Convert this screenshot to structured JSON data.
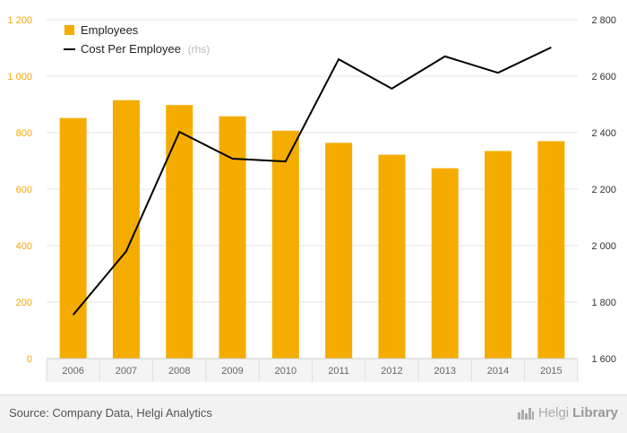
{
  "chart_data": {
    "type": "bar",
    "categories": [
      "2006",
      "2007",
      "2008",
      "2009",
      "2010",
      "2011",
      "2012",
      "2013",
      "2014",
      "2015"
    ],
    "series": [
      {
        "name": "Employees",
        "type": "bar",
        "axis": "left",
        "color": "#f5ac00",
        "values": [
          852,
          915,
          898,
          858,
          807,
          764,
          722,
          674,
          735,
          770
        ]
      },
      {
        "name": "Cost Per Employee",
        "type": "line",
        "axis": "right",
        "color": "#000000",
        "values": [
          1755,
          1980,
          2403,
          2308,
          2298,
          2660,
          2556,
          2670,
          2612,
          2702
        ]
      }
    ],
    "legend": {
      "items": [
        "Employees",
        "Cost Per Employee"
      ],
      "rhs_note": "(rhs)",
      "placement": "top-left"
    },
    "y_left": {
      "min": 0,
      "max": 1200,
      "ticks": [
        "0",
        "200",
        "400",
        "600",
        "800",
        "1 000",
        "1 200"
      ],
      "tick_values": [
        0,
        200,
        400,
        600,
        800,
        1000,
        1200
      ]
    },
    "y_right": {
      "min": 1600,
      "max": 2800,
      "ticks": [
        "1 600",
        "1 800",
        "2 000",
        "2 200",
        "2 400",
        "2 600",
        "2 800"
      ],
      "tick_values": [
        1600,
        1800,
        2000,
        2200,
        2400,
        2600,
        2800
      ]
    },
    "grid": true
  },
  "footer": {
    "source": "Source: Company Data, Helgi Analytics",
    "brand_light": "Helgi",
    "brand_bold": "Library"
  }
}
